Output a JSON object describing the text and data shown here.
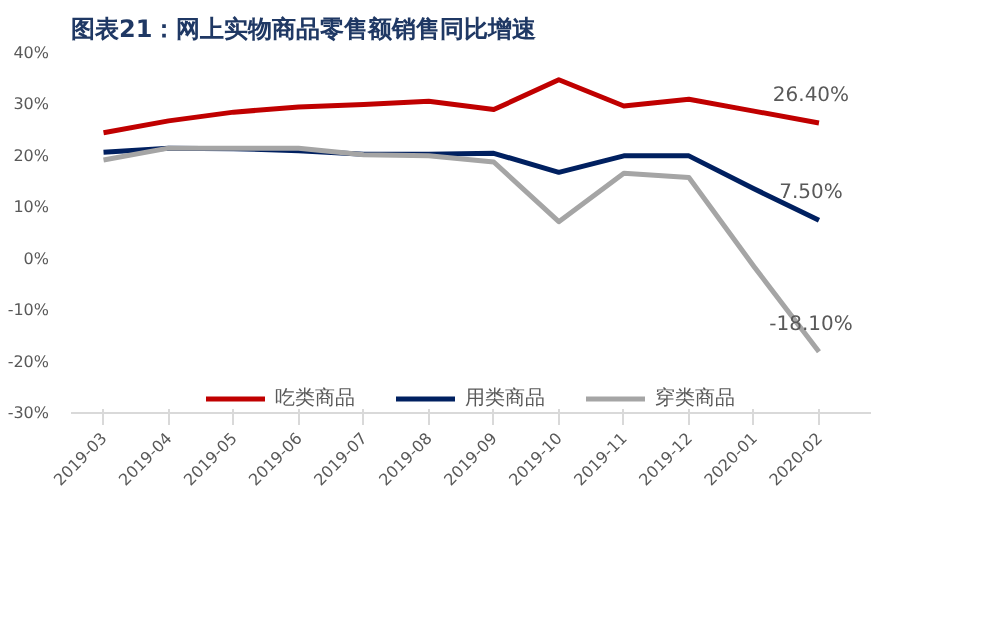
{
  "chart_data": {
    "type": "line",
    "title": "图表21：网上实物商品零售额销售同比增速",
    "categories": [
      "2019-03",
      "2019-04",
      "2019-05",
      "2019-06",
      "2019-07",
      "2019-08",
      "2019-09",
      "2019-10",
      "2019-11",
      "2019-12",
      "2020-01",
      "2020-02"
    ],
    "series": [
      {
        "name": "吃类商品",
        "color": "#c00000",
        "values": [
          24.5,
          26.8,
          28.5,
          29.5,
          30,
          30.6,
          29,
          34.8,
          29.7,
          31,
          28.7,
          26.4
        ],
        "value_labels": [
          null,
          null,
          null,
          null,
          null,
          null,
          null,
          null,
          null,
          null,
          null,
          "26.40%"
        ]
      },
      {
        "name": "用类商品",
        "color": "#002060",
        "values": [
          20.7,
          21.5,
          21.4,
          21,
          20.3,
          20.3,
          20.5,
          16.8,
          20,
          20,
          13.6,
          7.5
        ],
        "value_labels": [
          null,
          null,
          null,
          null,
          null,
          null,
          null,
          null,
          null,
          null,
          null,
          "7.50%"
        ]
      },
      {
        "name": "穿类商品",
        "color": "#a5a5a5",
        "values": [
          19.2,
          21.5,
          21.5,
          21.5,
          20.2,
          20,
          18.8,
          7.2,
          16.6,
          15.8,
          -1.5,
          -18.1
        ],
        "value_labels": [
          null,
          null,
          null,
          null,
          null,
          null,
          null,
          null,
          null,
          null,
          null,
          "-18.10%"
        ]
      }
    ],
    "ylim": [
      -30,
      40
    ],
    "yticks": [
      {
        "value": -30,
        "label": "-30%"
      },
      {
        "value": -20,
        "label": "-20%"
      },
      {
        "value": -10,
        "label": "-10%"
      },
      {
        "value": 0,
        "label": "0%"
      },
      {
        "value": 10,
        "label": "10%"
      },
      {
        "value": 20,
        "label": "20%"
      },
      {
        "value": 30,
        "label": "30%"
      },
      {
        "value": 40,
        "label": "40%"
      }
    ],
    "grid": false,
    "legend": "bottom",
    "marker": "none",
    "line_style": "solid"
  }
}
